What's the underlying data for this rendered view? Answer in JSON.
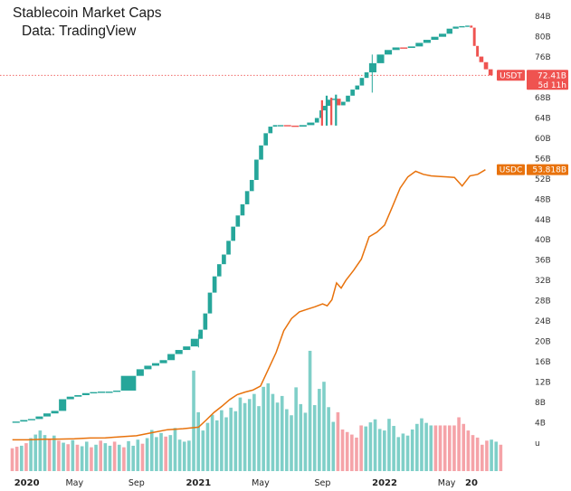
{
  "title": "Stablecoin Market Caps",
  "subtitle": "Data: TradingView",
  "chart_data": {
    "type": "line",
    "y_axis": {
      "ticks": [
        "84B",
        "80B",
        "76B",
        "72B",
        "68B",
        "64B",
        "60B",
        "56B",
        "52B",
        "48B",
        "44B",
        "40B",
        "36B",
        "32B",
        "28B",
        "24B",
        "20B",
        "16B",
        "12B",
        "8B",
        "4B",
        "u"
      ],
      "tick_values": [
        84,
        80,
        76,
        72,
        68,
        64,
        60,
        56,
        52,
        48,
        44,
        40,
        36,
        32,
        28,
        24,
        20,
        16,
        12,
        8,
        4,
        0
      ],
      "ylim": [
        -2,
        86
      ],
      "position": "right"
    },
    "x_axis": {
      "ticks": [
        {
          "label": "2020",
          "bold": true,
          "x": 0
        },
        {
          "label": "May",
          "bold": false,
          "x": 4
        },
        {
          "label": "Sep",
          "bold": false,
          "x": 8
        },
        {
          "label": "2021",
          "bold": true,
          "x": 12
        },
        {
          "label": "May",
          "bold": false,
          "x": 16
        },
        {
          "label": "Sep",
          "bold": false,
          "x": 20
        },
        {
          "label": "2022",
          "bold": true,
          "x": 24
        },
        {
          "label": "May",
          "bold": false,
          "x": 28
        },
        {
          "label": "20",
          "bold": true,
          "x": 29.6
        }
      ],
      "xlim": [
        -0.1,
        31
      ]
    },
    "series": [
      {
        "name": "USDT",
        "style": "candles",
        "color_up": "#26a69a",
        "color_down": "#ef5350",
        "last_value_label": "72.41B",
        "countdown_label": "5d 11h",
        "points": [
          [
            0,
            4.1
          ],
          [
            0.5,
            4.2
          ],
          [
            1,
            4.5
          ],
          [
            1.5,
            4.7
          ],
          [
            2,
            5.2
          ],
          [
            2.5,
            5.8
          ],
          [
            3,
            6.3
          ],
          [
            3.5,
            8.6
          ],
          [
            4,
            9.1
          ],
          [
            4.5,
            9.4
          ],
          [
            5,
            9.8
          ],
          [
            5.5,
            10.0
          ],
          [
            6,
            10.1
          ],
          [
            6.5,
            10.1
          ],
          [
            7,
            10.3
          ],
          [
            8,
            13.2
          ],
          [
            8.5,
            14.5
          ],
          [
            9,
            15.2
          ],
          [
            9.5,
            15.7
          ],
          [
            10,
            16.3
          ],
          [
            10.5,
            17.5
          ],
          [
            11,
            18.3
          ],
          [
            11.5,
            19.0
          ],
          [
            12,
            20.5
          ],
          [
            12.3,
            22.3
          ],
          [
            12.6,
            25.5
          ],
          [
            12.9,
            29.6
          ],
          [
            13.2,
            32.8
          ],
          [
            13.5,
            35.2
          ],
          [
            13.8,
            37.1
          ],
          [
            14.1,
            39.8
          ],
          [
            14.4,
            42.6
          ],
          [
            14.7,
            44.8
          ],
          [
            15,
            47.0
          ],
          [
            15.3,
            49.6
          ],
          [
            15.6,
            51.8
          ],
          [
            15.9,
            55.8
          ],
          [
            16.2,
            58.6
          ],
          [
            16.5,
            61.0
          ],
          [
            16.8,
            62.3
          ],
          [
            17.1,
            62.6
          ],
          [
            17.5,
            62.6
          ],
          [
            18,
            62.5
          ],
          [
            18.5,
            62.3
          ],
          [
            19,
            62.6
          ],
          [
            19.5,
            63.1
          ],
          [
            19.8,
            64.0
          ],
          [
            20,
            65.5
          ],
          [
            20.3,
            66.4
          ],
          [
            20.6,
            67.6
          ],
          [
            20.9,
            67.8
          ],
          [
            21.2,
            66.5
          ],
          [
            21.5,
            67.2
          ],
          [
            21.8,
            68.4
          ],
          [
            22.1,
            69.6
          ],
          [
            22.4,
            70.4
          ],
          [
            22.7,
            71.9
          ],
          [
            23,
            73.0
          ],
          [
            23.5,
            74.8
          ],
          [
            24,
            76.5
          ],
          [
            24.5,
            77.4
          ],
          [
            25,
            77.9
          ],
          [
            25.5,
            77.8
          ],
          [
            26,
            78.1
          ],
          [
            26.5,
            78.8
          ],
          [
            27,
            79.4
          ],
          [
            27.5,
            80.0
          ],
          [
            28,
            80.6
          ],
          [
            28.4,
            81.6
          ],
          [
            28.8,
            82.0
          ],
          [
            29.2,
            82.1
          ],
          [
            29.5,
            82.2
          ],
          [
            29.7,
            81.8
          ],
          [
            29.9,
            78.2
          ],
          [
            30.1,
            76.1
          ],
          [
            30.4,
            75.0
          ],
          [
            30.7,
            73.6
          ],
          [
            31,
            72.41
          ]
        ],
        "wicks": [
          {
            "x": 12.0,
            "high": 21.4,
            "low": 18.8
          },
          {
            "x": 23.2,
            "high": 76.5,
            "low": 69.0
          }
        ]
      },
      {
        "name": "USDC",
        "style": "line",
        "color": "#e8720c",
        "last_value_label": "53.818B",
        "points": [
          [
            0,
            0.6
          ],
          [
            1,
            0.6
          ],
          [
            2,
            0.7
          ],
          [
            3,
            0.75
          ],
          [
            4,
            0.8
          ],
          [
            5,
            0.95
          ],
          [
            6,
            1.0
          ],
          [
            7,
            1.2
          ],
          [
            8,
            1.4
          ],
          [
            9,
            2.0
          ],
          [
            10,
            2.6
          ],
          [
            11,
            2.8
          ],
          [
            12,
            3.1
          ],
          [
            12.5,
            4.5
          ],
          [
            13,
            6.0
          ],
          [
            13.5,
            7.2
          ],
          [
            14,
            8.5
          ],
          [
            14.5,
            9.5
          ],
          [
            15,
            10.0
          ],
          [
            15.5,
            10.4
          ],
          [
            16,
            11.2
          ],
          [
            16.5,
            14.5
          ],
          [
            17,
            17.8
          ],
          [
            17.5,
            22.1
          ],
          [
            18,
            24.5
          ],
          [
            18.5,
            25.8
          ],
          [
            19,
            26.3
          ],
          [
            19.5,
            26.8
          ],
          [
            20,
            27.4
          ],
          [
            20.3,
            27.0
          ],
          [
            20.6,
            28.2
          ],
          [
            20.9,
            31.5
          ],
          [
            21.2,
            30.5
          ],
          [
            21.5,
            32.0
          ],
          [
            22,
            34.0
          ],
          [
            22.5,
            36.2
          ],
          [
            23,
            40.6
          ],
          [
            23.5,
            41.5
          ],
          [
            24,
            42.9
          ],
          [
            24.5,
            46.5
          ],
          [
            25,
            50.2
          ],
          [
            25.5,
            52.4
          ],
          [
            26,
            53.5
          ],
          [
            26.5,
            52.9
          ],
          [
            27,
            52.6
          ],
          [
            27.5,
            52.5
          ],
          [
            28,
            52.4
          ],
          [
            28.5,
            52.3
          ],
          [
            29,
            50.6
          ],
          [
            29.5,
            52.6
          ],
          [
            30,
            52.9
          ],
          [
            30.5,
            53.818
          ]
        ]
      },
      {
        "name": "Volume",
        "style": "bars",
        "color_up": "#7fcfc8",
        "color_down": "#f5a3a8",
        "values": [
          [
            0,
            2.5,
            "down"
          ],
          [
            0.3,
            2.8,
            "down"
          ],
          [
            0.6,
            3.0,
            "up"
          ],
          [
            0.9,
            3.5,
            "down"
          ],
          [
            1.2,
            4.5,
            "up"
          ],
          [
            1.5,
            5.2,
            "up"
          ],
          [
            1.8,
            6.0,
            "up"
          ],
          [
            2.1,
            5.1,
            "up"
          ],
          [
            2.4,
            4.2,
            "down"
          ],
          [
            2.7,
            5.0,
            "up"
          ],
          [
            3.0,
            4.0,
            "down"
          ],
          [
            3.3,
            3.6,
            "up"
          ],
          [
            3.6,
            3.3,
            "down"
          ],
          [
            3.9,
            4.1,
            "up"
          ],
          [
            4.2,
            3.2,
            "down"
          ],
          [
            4.5,
            2.9,
            "up"
          ],
          [
            4.8,
            3.8,
            "up"
          ],
          [
            5.1,
            2.7,
            "down"
          ],
          [
            5.4,
            3.2,
            "up"
          ],
          [
            5.7,
            4.0,
            "down"
          ],
          [
            6.0,
            3.5,
            "up"
          ],
          [
            6.3,
            3.0,
            "up"
          ],
          [
            6.6,
            3.8,
            "down"
          ],
          [
            6.9,
            3.2,
            "up"
          ],
          [
            7.2,
            2.7,
            "down"
          ],
          [
            7.5,
            3.9,
            "up"
          ],
          [
            7.8,
            3.0,
            "up"
          ],
          [
            8.1,
            4.2,
            "up"
          ],
          [
            8.4,
            3.4,
            "down"
          ],
          [
            8.7,
            4.5,
            "up"
          ],
          [
            9.0,
            6.1,
            "up"
          ],
          [
            9.3,
            4.7,
            "up"
          ],
          [
            9.6,
            5.5,
            "up"
          ],
          [
            9.9,
            4.8,
            "down"
          ],
          [
            10.2,
            5.1,
            "up"
          ],
          [
            10.5,
            6.5,
            "up"
          ],
          [
            10.8,
            4.2,
            "up"
          ],
          [
            11.1,
            3.8,
            "up"
          ],
          [
            11.4,
            4.0,
            "up"
          ],
          [
            11.7,
            17.8,
            "up"
          ],
          [
            12.0,
            9.6,
            "up"
          ],
          [
            12.3,
            6.0,
            "up"
          ],
          [
            12.6,
            7.5,
            "up"
          ],
          [
            12.9,
            9.1,
            "up"
          ],
          [
            13.2,
            8.0,
            "up"
          ],
          [
            13.5,
            10.0,
            "up"
          ],
          [
            13.8,
            8.6,
            "up"
          ],
          [
            14.1,
            10.5,
            "up"
          ],
          [
            14.4,
            9.8,
            "up"
          ],
          [
            14.7,
            12.5,
            "up"
          ],
          [
            15.0,
            11.4,
            "up"
          ],
          [
            15.3,
            12.2,
            "up"
          ],
          [
            15.6,
            13.2,
            "up"
          ],
          [
            15.9,
            10.8,
            "up"
          ],
          [
            16.2,
            14.6,
            "up"
          ],
          [
            16.5,
            15.3,
            "up"
          ],
          [
            16.8,
            13.2,
            "up"
          ],
          [
            17.1,
            11.5,
            "up"
          ],
          [
            17.4,
            12.8,
            "up"
          ],
          [
            17.7,
            10.2,
            "up"
          ],
          [
            18.0,
            9.0,
            "up"
          ],
          [
            18.3,
            14.5,
            "up"
          ],
          [
            18.6,
            11.2,
            "up"
          ],
          [
            18.9,
            9.5,
            "up"
          ],
          [
            19.2,
            21.7,
            "up"
          ],
          [
            19.5,
            11.0,
            "up"
          ],
          [
            19.8,
            14.2,
            "up"
          ],
          [
            20.1,
            15.6,
            "up"
          ],
          [
            20.4,
            10.6,
            "up"
          ],
          [
            20.7,
            7.7,
            "up"
          ],
          [
            21.0,
            9.6,
            "down"
          ],
          [
            21.3,
            6.2,
            "down"
          ],
          [
            21.6,
            5.7,
            "down"
          ],
          [
            21.9,
            5.2,
            "down"
          ],
          [
            22.2,
            4.6,
            "down"
          ],
          [
            22.5,
            7.0,
            "down"
          ],
          [
            22.8,
            6.8,
            "up"
          ],
          [
            23.1,
            7.6,
            "up"
          ],
          [
            23.4,
            8.2,
            "up"
          ],
          [
            23.7,
            6.3,
            "up"
          ],
          [
            24.0,
            6.0,
            "up"
          ],
          [
            24.3,
            8.3,
            "up"
          ],
          [
            24.6,
            6.9,
            "up"
          ],
          [
            24.9,
            4.7,
            "up"
          ],
          [
            25.2,
            5.4,
            "up"
          ],
          [
            25.5,
            5.0,
            "up"
          ],
          [
            25.8,
            6.2,
            "up"
          ],
          [
            26.1,
            7.3,
            "up"
          ],
          [
            26.4,
            8.4,
            "up"
          ],
          [
            26.7,
            7.5,
            "up"
          ],
          [
            27.0,
            7.0,
            "up"
          ],
          [
            27.3,
            7.0,
            "down"
          ],
          [
            27.6,
            7.0,
            "down"
          ],
          [
            27.9,
            7.0,
            "down"
          ],
          [
            28.2,
            7.0,
            "down"
          ],
          [
            28.5,
            7.0,
            "down"
          ],
          [
            28.8,
            8.6,
            "down"
          ],
          [
            29.1,
            7.3,
            "down"
          ],
          [
            29.4,
            6.0,
            "down"
          ],
          [
            29.7,
            5.1,
            "down"
          ],
          [
            30.0,
            4.6,
            "down"
          ],
          [
            30.3,
            3.2,
            "down"
          ],
          [
            30.6,
            4.0,
            "down"
          ],
          [
            30.9,
            4.2,
            "up"
          ],
          [
            31.2,
            3.8,
            "up"
          ],
          [
            31.5,
            3.2,
            "down"
          ]
        ]
      }
    ],
    "reference_line": {
      "value": 72.41,
      "color": "#ef5350",
      "style": "dotted"
    },
    "tags": [
      {
        "series": "USDT",
        "name": "USDT",
        "value": "72.41B",
        "countdown": "5d 11h",
        "color": "#ef5350"
      },
      {
        "series": "USDC",
        "name": "USDC",
        "value": "53.818B",
        "color": "#e8720c"
      }
    ],
    "grid": false,
    "legend": "none"
  }
}
